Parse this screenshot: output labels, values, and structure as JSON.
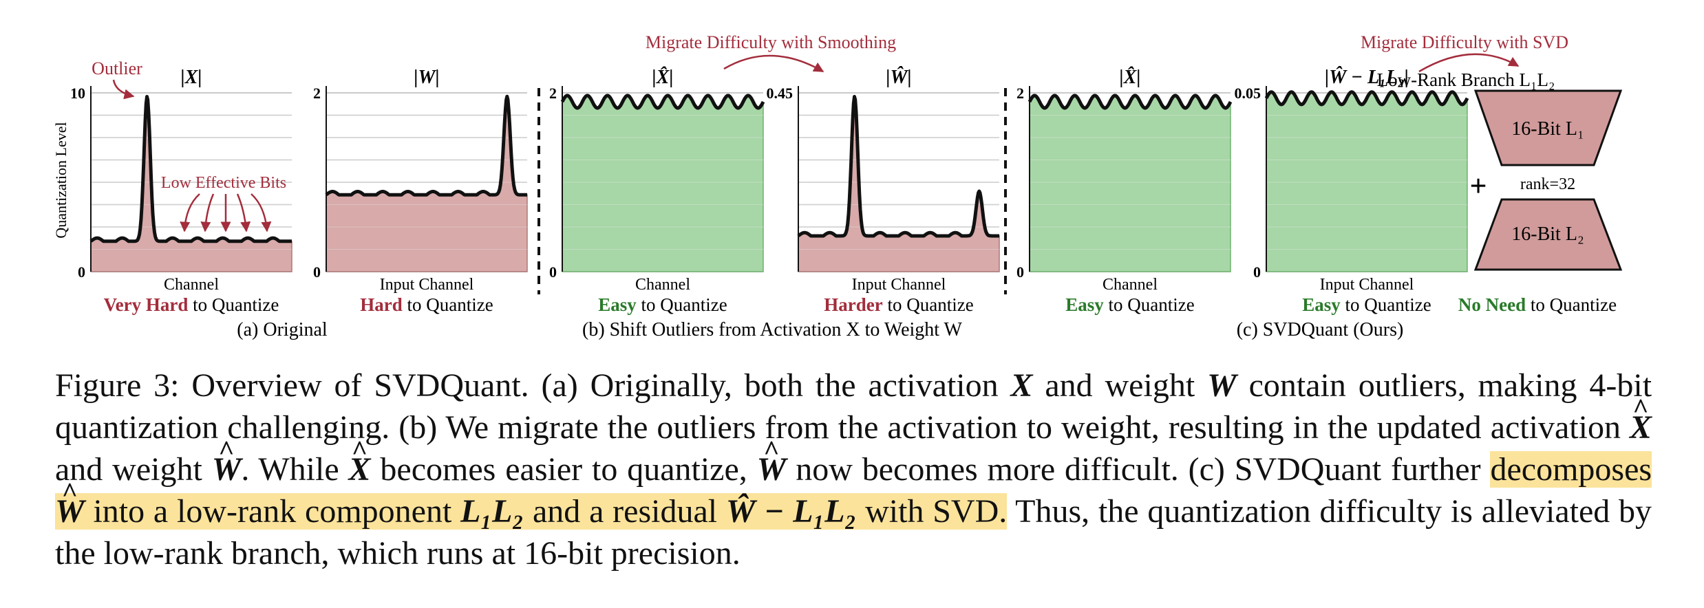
{
  "colors": {
    "hard_fill": "#d19b9b",
    "hard_edge": "#b07777",
    "easy_fill": "#98cf98",
    "easy_edge": "#6fb26f",
    "accent_red": "#a32d3c",
    "accent_green": "#2a7a2a",
    "grid": "#b8b8b8"
  },
  "panels": [
    {
      "id": "x",
      "title": "|X|",
      "y_top": "10",
      "y_bottom": "0",
      "x_label": "Channel",
      "difficulty_word": "Very Hard",
      "difficulty_rest": " to Quantize",
      "fill": "hard",
      "base_level": 0.17,
      "peaks": [
        {
          "at": 0.28,
          "height": 0.98
        }
      ]
    },
    {
      "id": "w",
      "title": "|W|",
      "y_top": "2",
      "y_bottom": "0",
      "x_label": "Input Channel",
      "difficulty_word": "Hard",
      "difficulty_rest": " to Quantize",
      "fill": "hard",
      "base_level": 0.43,
      "peaks": [
        {
          "at": 0.9,
          "height": 0.98
        }
      ]
    },
    {
      "id": "xhat",
      "title": "|X̂|",
      "y_top": "2",
      "y_bottom": "0",
      "x_label": "Channel",
      "difficulty_word": "Easy",
      "difficulty_rest": " to Quantize",
      "fill": "easy",
      "base_level": 0.95,
      "peaks": []
    },
    {
      "id": "what",
      "title": "|Ŵ|",
      "y_top": "0.45",
      "y_bottom": "",
      "x_label": "Input Channel",
      "difficulty_word": "Harder",
      "difficulty_rest": " to Quantize",
      "fill": "hard",
      "base_level": 0.2,
      "peaks": [
        {
          "at": 0.28,
          "height": 0.98
        },
        {
          "at": 0.9,
          "height": 0.45
        }
      ]
    },
    {
      "id": "xhat2",
      "title": "|X̂|",
      "y_top": "2",
      "y_bottom": "0",
      "x_label": "Channel",
      "difficulty_word": "Easy",
      "difficulty_rest": " to Quantize",
      "fill": "easy",
      "base_level": 0.95,
      "peaks": []
    },
    {
      "id": "resid",
      "title": "|Ŵ − L₁L₂|",
      "y_top": "0.05",
      "y_bottom": "0",
      "x_label": "Input Channel",
      "difficulty_word": "Easy",
      "difficulty_rest": " to Quantize",
      "fill": "easy",
      "base_level": 0.97,
      "peaks": []
    }
  ],
  "y_axis_label": "Quantization Level",
  "annotations": {
    "outlier": "Outlier",
    "low_effective_bits": "Low Effective Bits",
    "migrate_smoothing": "Migrate Difficulty with Smoothing",
    "migrate_svd": "Migrate Difficulty with SVD"
  },
  "lowrank": {
    "title": "Low-Rank Branch L₁L₂",
    "l1": "16-Bit L₁",
    "l2": "16-Bit L₂",
    "rank": "rank=32",
    "plus": "+",
    "difficulty_word": "No Need",
    "difficulty_rest": " to Quantize"
  },
  "groups": {
    "a": "(a) Original",
    "b": "(b) Shift Outliers from Activation X to Weight W",
    "c": "(c) SVDQuant (Ours)"
  },
  "caption": {
    "figure_label": "Figure 3:",
    "s1": "Overview of SVDQuant. (a) Originally, both the activation",
    "X": "X",
    "s2": "and weight",
    "W": "W",
    "s3": "contain outliers, making 4-bit quantization challenging. (b) We migrate the outliers from the activation to weight, resulting in the updated activation",
    "s4": "and weight",
    "s5": ". While",
    "s6": "becomes easier to quantize,",
    "s7": "now becomes more difficult. (c) SVDQuant further",
    "hl1": "decomposes",
    "hl2": "into a low-rank component",
    "L1L2": "L₁L₂",
    "hl3": "and a residual",
    "resid": "Ŵ − L₁L₂",
    "hl4": "with SVD.",
    "s8": "Thus, the quantization difficulty is alleviated by the low-rank branch, which runs at 16-bit precision."
  }
}
